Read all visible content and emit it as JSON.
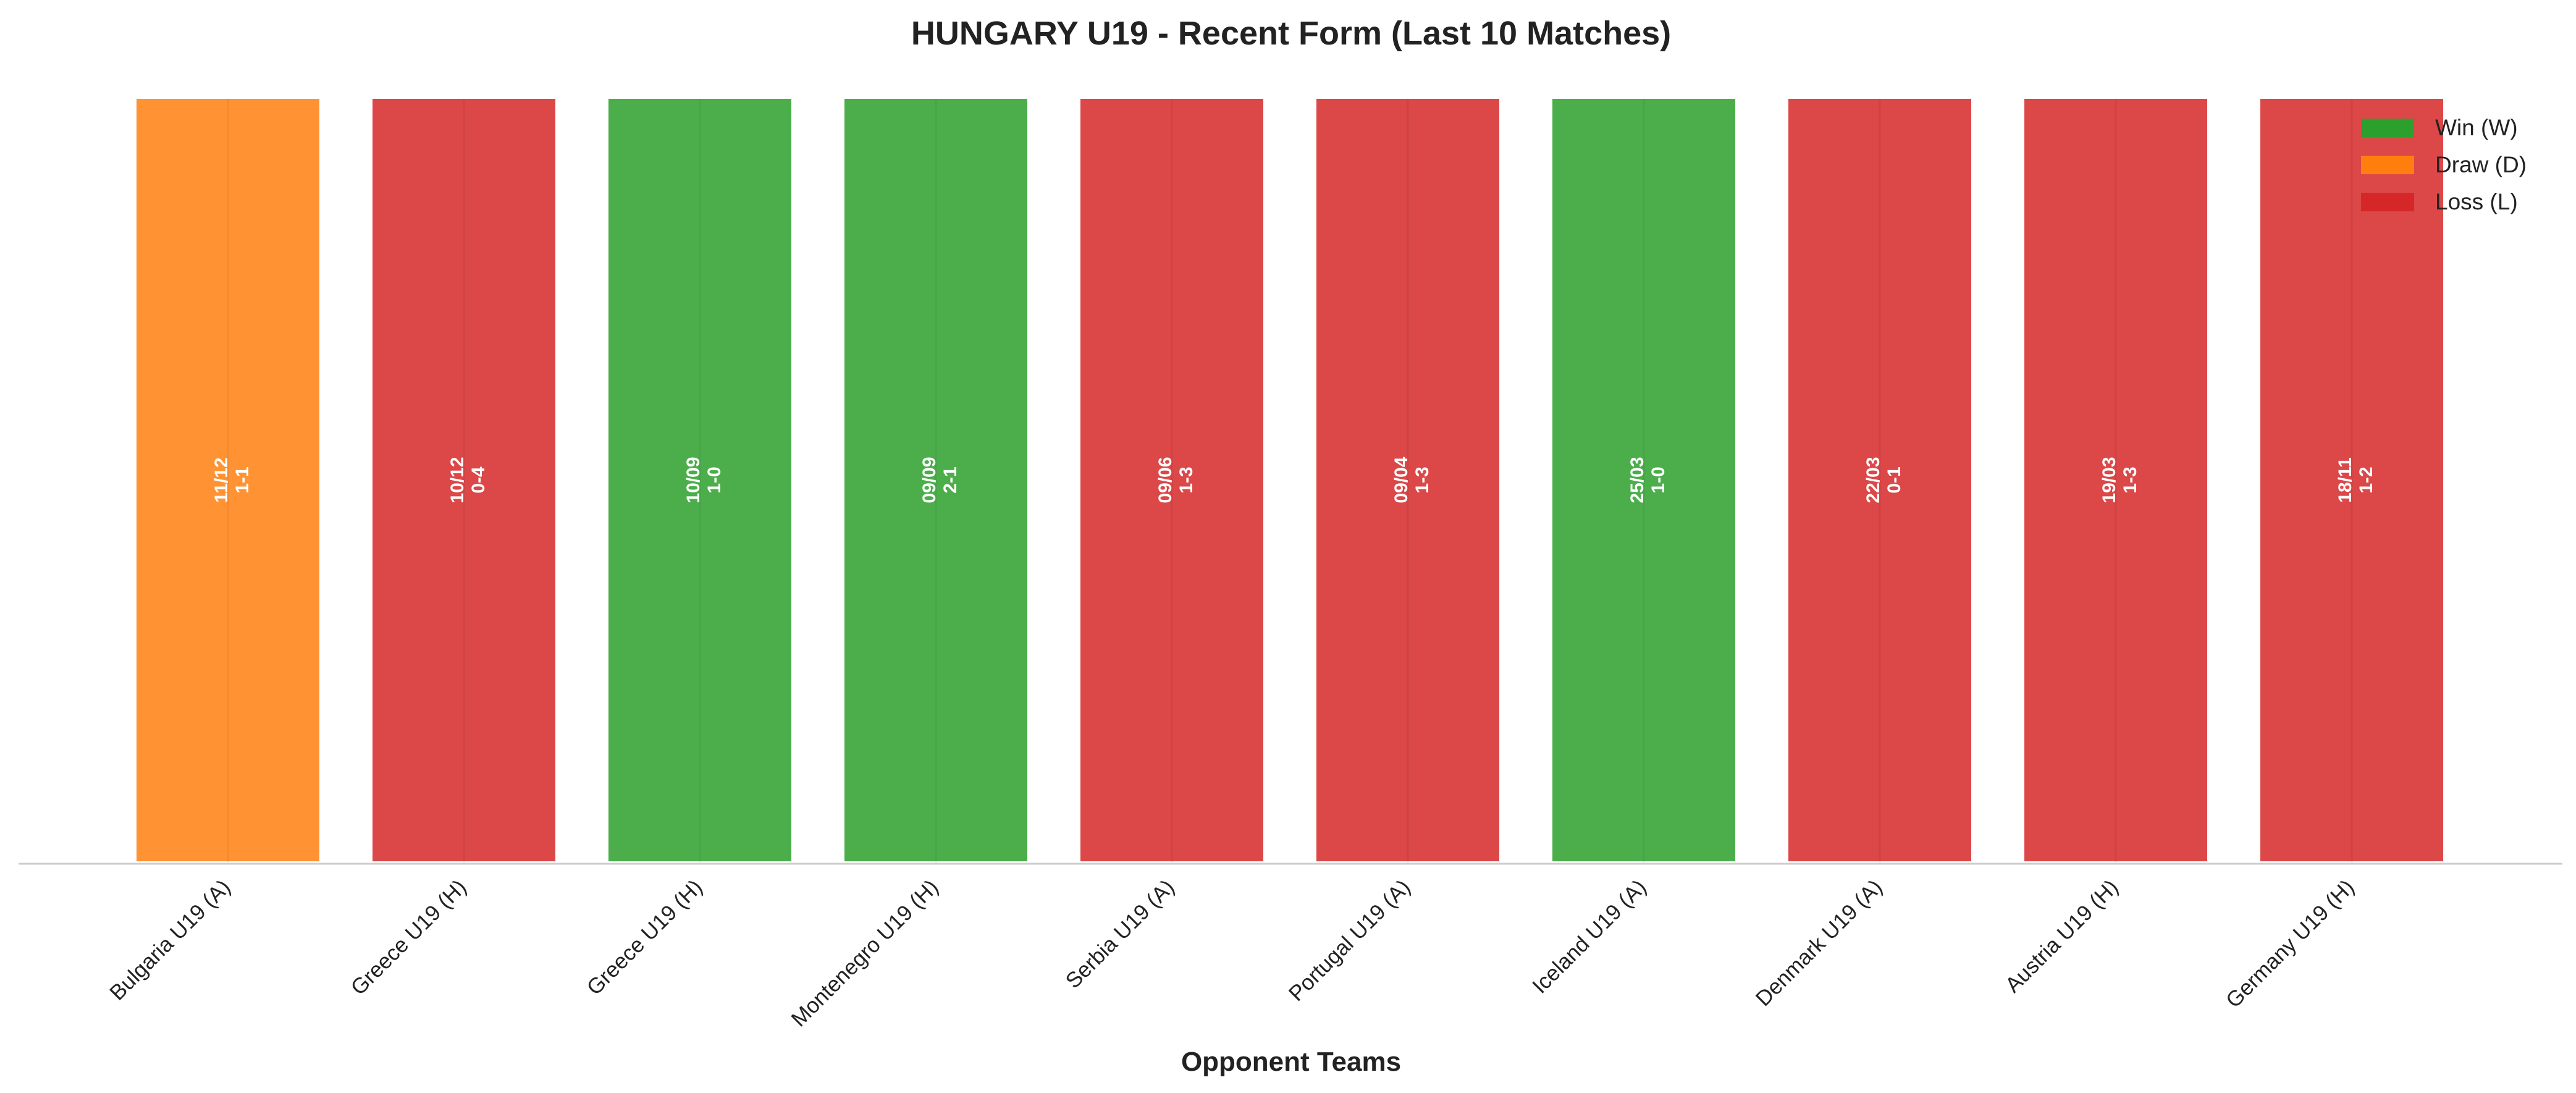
{
  "chart_data": {
    "type": "bar",
    "title": "HUNGARY U19 - Recent Form (Last 10 Matches)",
    "xlabel": "Opponent Teams",
    "ylabel": "",
    "ylim": [
      0,
      1
    ],
    "grid": false,
    "legend_position": "top-right",
    "colors": {
      "W": "#2ca02c",
      "D": "#ff7f0e",
      "L": "#d62728"
    },
    "legend": [
      {
        "result": "W",
        "label": "Win (W)"
      },
      {
        "result": "D",
        "label": "Draw (D)"
      },
      {
        "result": "L",
        "label": "Loss (L)"
      }
    ],
    "categories": [
      "Bulgaria U19 (A)",
      "Greece U19 (H)",
      "Greece U19 (H)",
      "Montenegro U19 (H)",
      "Serbia U19 (A)",
      "Portugal U19 (A)",
      "Iceland U19 (A)",
      "Denmark U19 (A)",
      "Austria U19 (H)",
      "Germany U19 (H)"
    ],
    "values": [
      1,
      1,
      1,
      1,
      1,
      1,
      1,
      1,
      1,
      1
    ],
    "matches": [
      {
        "opponent": "Bulgaria U19 (A)",
        "date": "11/12",
        "score": "1-1",
        "result": "D",
        "value": 1
      },
      {
        "opponent": "Greece U19 (H)",
        "date": "10/12",
        "score": "0-4",
        "result": "L",
        "value": 1
      },
      {
        "opponent": "Greece U19 (H)",
        "date": "10/09",
        "score": "1-0",
        "result": "W",
        "value": 1
      },
      {
        "opponent": "Montenegro U19 (H)",
        "date": "09/09",
        "score": "2-1",
        "result": "W",
        "value": 1
      },
      {
        "opponent": "Serbia U19 (A)",
        "date": "09/06",
        "score": "1-3",
        "result": "L",
        "value": 1
      },
      {
        "opponent": "Portugal U19 (A)",
        "date": "09/04",
        "score": "1-3",
        "result": "L",
        "value": 1
      },
      {
        "opponent": "Iceland U19 (A)",
        "date": "25/03",
        "score": "1-0",
        "result": "W",
        "value": 1
      },
      {
        "opponent": "Denmark U19 (A)",
        "date": "22/03",
        "score": "0-1",
        "result": "L",
        "value": 1
      },
      {
        "opponent": "Austria U19 (H)",
        "date": "19/03",
        "score": "1-3",
        "result": "L",
        "value": 1
      },
      {
        "opponent": "Germany U19 (H)",
        "date": "18/11",
        "score": "1-2",
        "result": "L",
        "value": 1
      }
    ]
  }
}
